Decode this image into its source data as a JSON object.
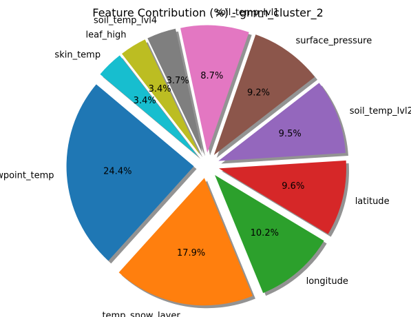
{
  "chart_data": {
    "type": "pie",
    "title": "Feature Contribution (%) - gmm_cluster_2",
    "start_angle_deg": 140,
    "direction": "counterclockwise",
    "exploded": true,
    "shadow": true,
    "slices": [
      {
        "label": "dewpoint_temp",
        "value": 24.4,
        "pct_label": "24.4%",
        "color": "#1f77b4"
      },
      {
        "label": "temp_snow_layer",
        "value": 17.9,
        "pct_label": "17.9%",
        "color": "#ff7f0e"
      },
      {
        "label": "longitude",
        "value": 10.2,
        "pct_label": "10.2%",
        "color": "#2ca02c"
      },
      {
        "label": "latitude",
        "value": 9.6,
        "pct_label": "9.6%",
        "color": "#d62728"
      },
      {
        "label": "soil_temp_lvl2",
        "value": 9.5,
        "pct_label": "9.5%",
        "color": "#9467bd"
      },
      {
        "label": "surface_pressure",
        "value": 9.2,
        "pct_label": "9.2%",
        "color": "#8c564b"
      },
      {
        "label": "soil_temp_lvl1",
        "value": 8.7,
        "pct_label": "8.7%",
        "color": "#e377c2"
      },
      {
        "label": "soil_temp_lvl4",
        "value": 3.7,
        "pct_label": "3.7%",
        "color": "#7f7f7f"
      },
      {
        "label": "leaf_high",
        "value": 3.4,
        "pct_label": "3.4%",
        "color": "#bcbd22"
      },
      {
        "label": "skin_temp",
        "value": 3.4,
        "pct_label": "3.4%",
        "color": "#17becf"
      }
    ]
  }
}
